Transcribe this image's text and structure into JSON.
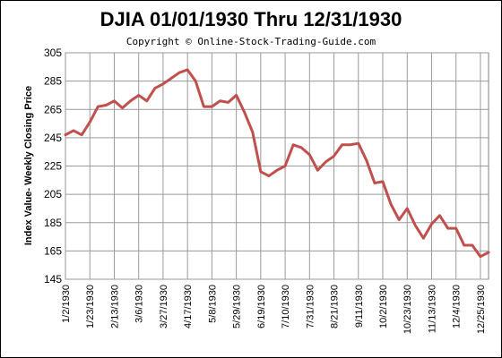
{
  "chart_data": {
    "type": "line",
    "title": "DJIA 01/01/1930  Thru 12/31/1930",
    "subtitle": "Copyright © Online-Stock-Trading-Guide.com",
    "xlabel": "",
    "ylabel": "Index Value- Weekly Closing Price",
    "ylim": [
      145,
      305
    ],
    "yticks": [
      145,
      165,
      185,
      205,
      225,
      245,
      265,
      285,
      305
    ],
    "grid": true,
    "line_color": "#c0504d",
    "x_tick_labels": [
      "1/2/1930",
      "1/23/1930",
      "2/13/1930",
      "3/6/1930",
      "3/27/1930",
      "4/17/1930",
      "5/8/1930",
      "5/29/1930",
      "6/19/1930",
      "7/10/1930",
      "7/31/1930",
      "8/21/1930",
      "9/11/1930",
      "10/2/1930",
      "10/23/1930",
      "11/13/1930",
      "12/4/1930",
      "12/25/1930"
    ],
    "series": [
      {
        "values": [
          247,
          250,
          247,
          256,
          267,
          268,
          271,
          266,
          271,
          275,
          271,
          280,
          283,
          287,
          291,
          293,
          285,
          267,
          267,
          271,
          270,
          275,
          263,
          249,
          221,
          218,
          222,
          225,
          240,
          238,
          233,
          222,
          228,
          232,
          240,
          240,
          241,
          229,
          213,
          214,
          198,
          187,
          195,
          183,
          174,
          184,
          190,
          181,
          181,
          169,
          169,
          161,
          164
        ]
      }
    ]
  }
}
